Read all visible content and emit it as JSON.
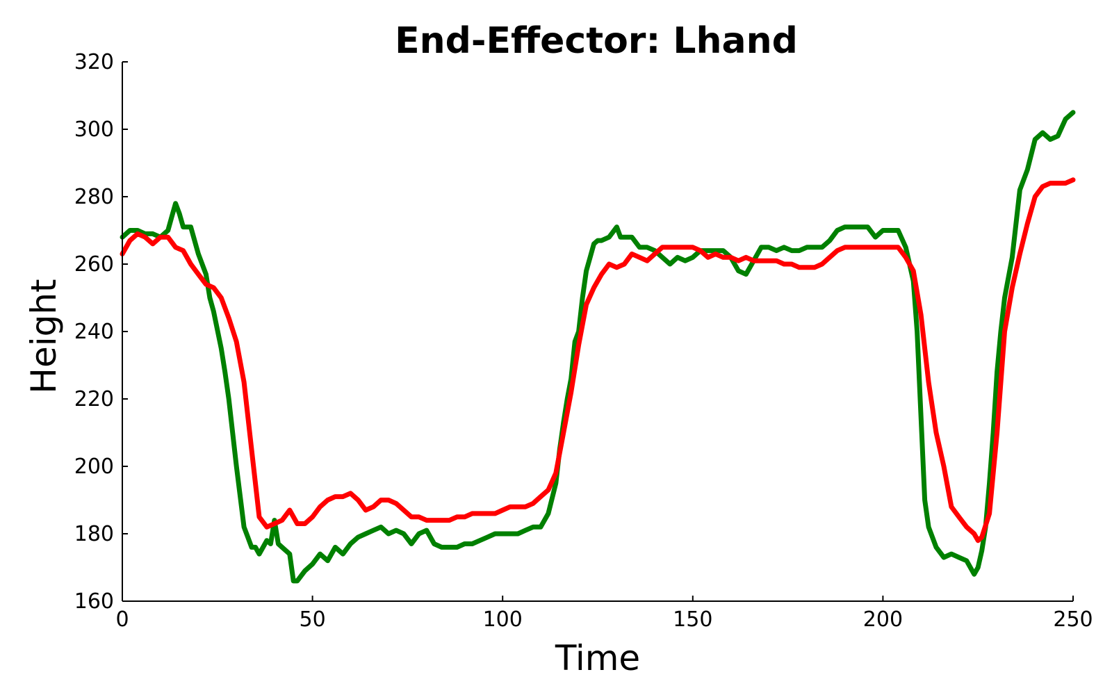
{
  "chart_data": {
    "type": "line",
    "title": "End-Effector: Lhand",
    "xlabel": "Time",
    "ylabel": "Height",
    "xlim": [
      0,
      250
    ],
    "ylim": [
      160,
      320
    ],
    "xticks": [
      0,
      50,
      100,
      150,
      200,
      250
    ],
    "yticks": [
      160,
      180,
      200,
      220,
      240,
      260,
      280,
      300,
      320
    ],
    "grid": false,
    "legend": "none",
    "series": [
      {
        "color": "#008000",
        "x": [
          0,
          2,
          4,
          6,
          8,
          10,
          12,
          13,
          14,
          15,
          16,
          18,
          20,
          22,
          23,
          24,
          26,
          27,
          28,
          30,
          32,
          33,
          34,
          35,
          36,
          37,
          38,
          39,
          40,
          41,
          42,
          44,
          45,
          46,
          48,
          50,
          52,
          54,
          56,
          58,
          60,
          62,
          64,
          66,
          68,
          70,
          72,
          74,
          76,
          78,
          80,
          82,
          84,
          86,
          88,
          90,
          92,
          94,
          96,
          98,
          100,
          102,
          104,
          106,
          108,
          110,
          112,
          114,
          115,
          116,
          117,
          118,
          119,
          120,
          121,
          122,
          123,
          124,
          125,
          126,
          128,
          130,
          131,
          132,
          134,
          136,
          138,
          140,
          142,
          144,
          146,
          148,
          150,
          152,
          154,
          156,
          158,
          160,
          162,
          164,
          166,
          168,
          170,
          172,
          174,
          176,
          178,
          180,
          182,
          184,
          186,
          188,
          190,
          192,
          194,
          196,
          198,
          200,
          202,
          204,
          206,
          207,
          208,
          209,
          210,
          211,
          212,
          214,
          216,
          218,
          220,
          222,
          224,
          225,
          226,
          227,
          228,
          229,
          230,
          231,
          232,
          234,
          236,
          238,
          240,
          242,
          244,
          246,
          248,
          250
        ],
        "values": [
          268,
          270,
          270,
          269,
          269,
          268,
          270,
          274,
          278,
          275,
          271,
          271,
          263,
          257,
          250,
          246,
          235,
          228,
          220,
          200,
          182,
          179,
          176,
          176,
          174,
          176,
          178,
          177,
          184,
          177,
          176,
          174,
          166,
          166,
          169,
          171,
          174,
          172,
          176,
          174,
          177,
          179,
          180,
          181,
          182,
          180,
          181,
          180,
          177,
          180,
          181,
          177,
          176,
          176,
          176,
          177,
          177,
          178,
          179,
          180,
          180,
          180,
          180,
          181,
          182,
          182,
          186,
          195,
          205,
          213,
          220,
          226,
          237,
          240,
          250,
          258,
          262,
          266,
          267,
          267,
          268,
          271,
          268,
          268,
          268,
          265,
          265,
          264,
          262,
          260,
          262,
          261,
          262,
          264,
          264,
          264,
          264,
          262,
          258,
          257,
          261,
          265,
          265,
          264,
          265,
          264,
          264,
          265,
          265,
          265,
          267,
          270,
          271,
          271,
          271,
          271,
          268,
          270,
          270,
          270,
          265,
          260,
          255,
          240,
          215,
          190,
          182,
          176,
          173,
          174,
          173,
          172,
          168,
          170,
          175,
          182,
          195,
          210,
          228,
          240,
          250,
          262,
          282,
          288,
          297,
          299,
          297,
          298,
          303,
          305
        ]
      },
      {
        "color": "#ff0000",
        "x": [
          0,
          2,
          4,
          6,
          8,
          10,
          12,
          14,
          16,
          18,
          20,
          22,
          24,
          26,
          28,
          30,
          32,
          34,
          36,
          38,
          40,
          42,
          44,
          46,
          48,
          50,
          52,
          54,
          56,
          58,
          60,
          62,
          64,
          66,
          68,
          70,
          72,
          74,
          76,
          78,
          80,
          82,
          84,
          86,
          88,
          90,
          92,
          94,
          96,
          98,
          100,
          102,
          104,
          106,
          108,
          110,
          112,
          114,
          116,
          118,
          120,
          122,
          124,
          126,
          128,
          130,
          132,
          134,
          136,
          138,
          140,
          142,
          144,
          146,
          148,
          150,
          152,
          154,
          156,
          158,
          160,
          162,
          164,
          166,
          168,
          170,
          172,
          174,
          176,
          178,
          180,
          182,
          184,
          186,
          188,
          190,
          192,
          194,
          196,
          198,
          200,
          202,
          204,
          206,
          208,
          210,
          212,
          214,
          216,
          218,
          220,
          222,
          224,
          225,
          226,
          228,
          230,
          232,
          234,
          236,
          238,
          240,
          242,
          244,
          246,
          248,
          250
        ],
        "values": [
          263,
          267,
          269,
          268,
          266,
          268,
          268,
          265,
          264,
          260,
          257,
          254,
          253,
          250,
          244,
          237,
          225,
          205,
          185,
          182,
          183,
          184,
          187,
          183,
          183,
          185,
          188,
          190,
          191,
          191,
          192,
          190,
          187,
          188,
          190,
          190,
          189,
          187,
          185,
          185,
          184,
          184,
          184,
          184,
          185,
          185,
          186,
          186,
          186,
          186,
          187,
          188,
          188,
          188,
          189,
          191,
          193,
          198,
          210,
          222,
          236,
          248,
          253,
          257,
          260,
          259,
          260,
          263,
          262,
          261,
          263,
          265,
          265,
          265,
          265,
          265,
          264,
          262,
          263,
          262,
          262,
          261,
          262,
          261,
          261,
          261,
          261,
          260,
          260,
          259,
          259,
          259,
          260,
          262,
          264,
          265,
          265,
          265,
          265,
          265,
          265,
          265,
          265,
          262,
          258,
          245,
          225,
          210,
          200,
          188,
          185,
          182,
          180,
          178,
          179,
          186,
          210,
          240,
          253,
          263,
          272,
          280,
          283,
          284,
          284,
          284,
          285
        ]
      }
    ]
  }
}
